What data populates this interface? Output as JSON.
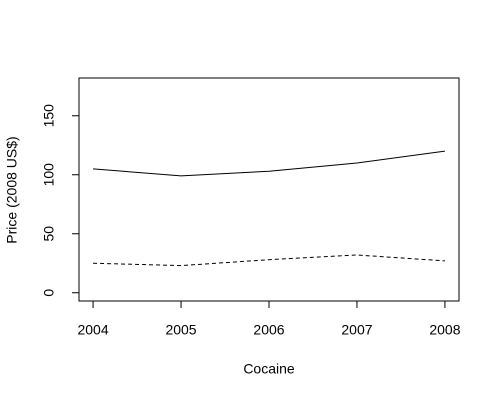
{
  "chart_data": {
    "type": "line",
    "x_label": "Cocaine",
    "y_label": "Price (2008 US$)",
    "x": [
      2004,
      2005,
      2006,
      2007,
      2008
    ],
    "series": [
      {
        "color": "#000000",
        "dash": "solid",
        "values": [
          105,
          99,
          103,
          110,
          120
        ]
      },
      {
        "color": "#000000",
        "dash": "dashed",
        "values": [
          25,
          23,
          28,
          32,
          27
        ]
      }
    ],
    "xlim": [
      2003.84,
      2008.16
    ],
    "xticks": [
      2004,
      2005,
      2006,
      2007,
      2008
    ],
    "ylim": [
      -7,
      182
    ],
    "yticks": [
      0,
      50,
      100,
      150
    ],
    "grid": false
  }
}
